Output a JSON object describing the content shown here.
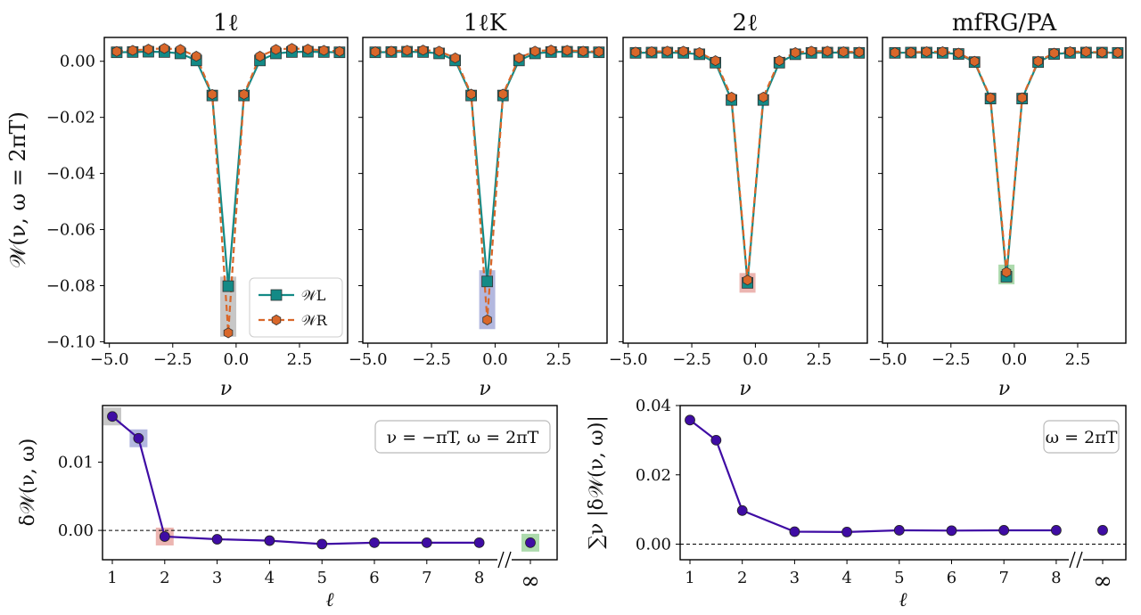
{
  "colors": {
    "left": "#138a86",
    "right": "#d9672a",
    "delta": "#3f0ca4",
    "hl_gray": "#bdbdbd",
    "hl_blue": "#a6acd9",
    "hl_red": "#e9a8a3",
    "hl_green": "#9fd39f"
  },
  "chart_data": [
    {
      "type": "line",
      "title": "1ℓ",
      "xlabel": "ν",
      "ylabel": "𝒲(ν, ω = 2πT)",
      "xlim": [
        -5.2,
        4.4
      ],
      "ylim": [
        -0.1005,
        0.0085
      ],
      "xticks": [
        -5.0,
        -2.5,
        0.0,
        2.5
      ],
      "xtick_labels": [
        "−5.0",
        "−2.5",
        "0.0",
        "2.5"
      ],
      "yticks": [
        0.0,
        -0.02,
        -0.04,
        -0.06,
        -0.08,
        -0.1
      ],
      "ytick_labels": [
        "0.00",
        "−0.02",
        "−0.04",
        "−0.06",
        "−0.08",
        "−0.10"
      ],
      "x": [
        -4.71,
        -4.08,
        -3.46,
        -2.83,
        -2.2,
        -1.57,
        -0.94,
        -0.31,
        0.31,
        0.94,
        1.57,
        2.2,
        2.83,
        3.46,
        4.08
      ],
      "series": [
        {
          "name": "𝒲L",
          "style": "solid-square",
          "values": [
            0.0032,
            0.0033,
            0.0034,
            0.0033,
            0.0028,
            0.0003,
            -0.0122,
            -0.0802,
            -0.0122,
            0.0003,
            0.0028,
            0.0033,
            0.0034,
            0.0033,
            0.0032
          ]
        },
        {
          "name": "𝒲R",
          "style": "dashed-hexagon",
          "values": [
            0.0035,
            0.0039,
            0.0043,
            0.0046,
            0.0042,
            0.0018,
            -0.0118,
            -0.0968,
            -0.0118,
            0.0018,
            0.0042,
            0.0046,
            0.0043,
            0.0039,
            0.0035
          ]
        }
      ],
      "highlight": {
        "x": -0.31,
        "y_range": [
          -0.0982,
          -0.0768
        ],
        "color": "hl_gray"
      },
      "legend": {
        "position": "bottom-right",
        "entries": [
          "𝒲L",
          "𝒲R"
        ]
      }
    },
    {
      "type": "line",
      "title": "1ℓK",
      "xlabel": "ν",
      "xlim": [
        -5.2,
        4.4
      ],
      "ylim": [
        -0.1005,
        0.0085
      ],
      "xticks": [
        -5.0,
        -2.5,
        0.0,
        2.5
      ],
      "xtick_labels": [
        "−5.0",
        "−2.5",
        "0.0",
        "2.5"
      ],
      "x": [
        -4.71,
        -4.08,
        -3.46,
        -2.83,
        -2.2,
        -1.57,
        -0.94,
        -0.31,
        0.31,
        0.94,
        1.57,
        2.2,
        2.83,
        3.46,
        4.08
      ],
      "series": [
        {
          "name": "𝒲L",
          "style": "solid-square",
          "values": [
            0.0032,
            0.0033,
            0.0034,
            0.0033,
            0.0028,
            0.0003,
            -0.0122,
            -0.0785,
            -0.0122,
            0.0003,
            0.0028,
            0.0033,
            0.0034,
            0.0033,
            0.0032
          ]
        },
        {
          "name": "𝒲R",
          "style": "dashed-hexagon",
          "values": [
            0.0034,
            0.0036,
            0.0039,
            0.004,
            0.0036,
            0.0012,
            -0.0117,
            -0.0922,
            -0.0117,
            0.0012,
            0.0036,
            0.004,
            0.0039,
            0.0036,
            0.0034
          ]
        }
      ],
      "highlight": {
        "x": -0.31,
        "y_range": [
          -0.0955,
          -0.0745
        ],
        "color": "hl_blue"
      }
    },
    {
      "type": "line",
      "title": "2ℓ",
      "xlabel": "ν",
      "xlim": [
        -5.2,
        4.4
      ],
      "ylim": [
        -0.1005,
        0.0085
      ],
      "xticks": [
        -5.0,
        -2.5,
        0.0,
        2.5
      ],
      "xtick_labels": [
        "−5.0",
        "−2.5",
        "0.0",
        "2.5"
      ],
      "x": [
        -4.71,
        -4.08,
        -3.46,
        -2.83,
        -2.2,
        -1.57,
        -0.94,
        -0.31,
        0.31,
        0.94,
        1.57,
        2.2,
        2.83,
        3.46,
        4.08
      ],
      "series": [
        {
          "name": "𝒲L",
          "style": "solid-square",
          "values": [
            0.003,
            0.0031,
            0.0031,
            0.003,
            0.0025,
            -0.0005,
            -0.0138,
            -0.079,
            -0.0138,
            -0.0005,
            0.0025,
            0.003,
            0.0031,
            0.0031,
            0.003
          ]
        },
        {
          "name": "𝒲R",
          "style": "dashed-hexagon",
          "values": [
            0.0033,
            0.0034,
            0.0036,
            0.0036,
            0.0031,
            0.0002,
            -0.0128,
            -0.078,
            -0.0128,
            0.0002,
            0.0031,
            0.0036,
            0.0036,
            0.0034,
            0.0033
          ]
        }
      ],
      "highlight": {
        "x": -0.31,
        "y_range": [
          -0.0825,
          -0.0755
        ],
        "color": "hl_red"
      }
    },
    {
      "type": "line",
      "title": "mfRG/PA",
      "xlabel": "ν",
      "xlim": [
        -5.2,
        4.4
      ],
      "ylim": [
        -0.1005,
        0.0085
      ],
      "xticks": [
        -5.0,
        -2.5,
        0.0,
        2.5
      ],
      "xtick_labels": [
        "−5.0",
        "−2.5",
        "0.0",
        "2.5"
      ],
      "x": [
        -4.71,
        -4.08,
        -3.46,
        -2.83,
        -2.2,
        -1.57,
        -0.94,
        -0.31,
        0.31,
        0.94,
        1.57,
        2.2,
        2.83,
        3.46,
        4.08
      ],
      "series": [
        {
          "name": "𝒲L",
          "style": "solid-square",
          "values": [
            0.003,
            0.0031,
            0.0031,
            0.003,
            0.0026,
            -0.0003,
            -0.0133,
            -0.0768,
            -0.0133,
            -0.0003,
            0.0026,
            0.003,
            0.0031,
            0.0031,
            0.003
          ]
        },
        {
          "name": "𝒲R",
          "style": "dashed-hexagon",
          "values": [
            0.0031,
            0.0032,
            0.0034,
            0.0034,
            0.0029,
            0.0,
            -0.013,
            -0.0752,
            -0.013,
            0.0,
            0.0029,
            0.0034,
            0.0034,
            0.0032,
            0.0031
          ]
        }
      ],
      "highlight": {
        "x": -0.31,
        "y_range": [
          -0.0795,
          -0.0725
        ],
        "color": "hl_green"
      }
    },
    {
      "type": "line",
      "xlabel": "ℓ",
      "ylabel": "δ𝒲(ν, ω)",
      "ylim": [
        -0.0043,
        0.0183
      ],
      "xticks": [
        1,
        2,
        3,
        4,
        5,
        6,
        7,
        8,
        "∞"
      ],
      "ytick_labels": [
        "0.00",
        "0.01"
      ],
      "yticks": [
        0.0,
        0.01
      ],
      "x": [
        1,
        1.5,
        2,
        3,
        4,
        5,
        6,
        7,
        8
      ],
      "values": [
        0.0167,
        0.0135,
        -0.0009,
        -0.0013,
        -0.0015,
        -0.002,
        -0.0018,
        -0.0018,
        -0.0018
      ],
      "inf_value": -0.0018,
      "annotation": "ν = −πT, ω = 2πT",
      "highlights": [
        {
          "x": 1,
          "y": 0.0167,
          "color": "hl_gray"
        },
        {
          "x": 1.5,
          "y": 0.0135,
          "color": "hl_blue"
        },
        {
          "x": 2,
          "y": -0.0009,
          "color": "hl_red"
        },
        {
          "x": "∞",
          "y": -0.0018,
          "color": "hl_green"
        }
      ]
    },
    {
      "type": "line",
      "xlabel": "ℓ",
      "ylabel": "∑ν |δ𝒲(ν, ω)|",
      "ylim": [
        -0.0045,
        0.04
      ],
      "xticks": [
        1,
        2,
        3,
        4,
        5,
        6,
        7,
        8,
        "∞"
      ],
      "yticks": [
        0.0,
        0.02,
        0.04
      ],
      "ytick_labels": [
        "0.00",
        "0.02",
        "0.04"
      ],
      "x": [
        1,
        1.5,
        2,
        3,
        4,
        5,
        6,
        7,
        8
      ],
      "values": [
        0.0358,
        0.03,
        0.0097,
        0.0036,
        0.0035,
        0.004,
        0.0039,
        0.004,
        0.004
      ],
      "inf_value": 0.004,
      "annotation": "ω = 2πT"
    }
  ]
}
